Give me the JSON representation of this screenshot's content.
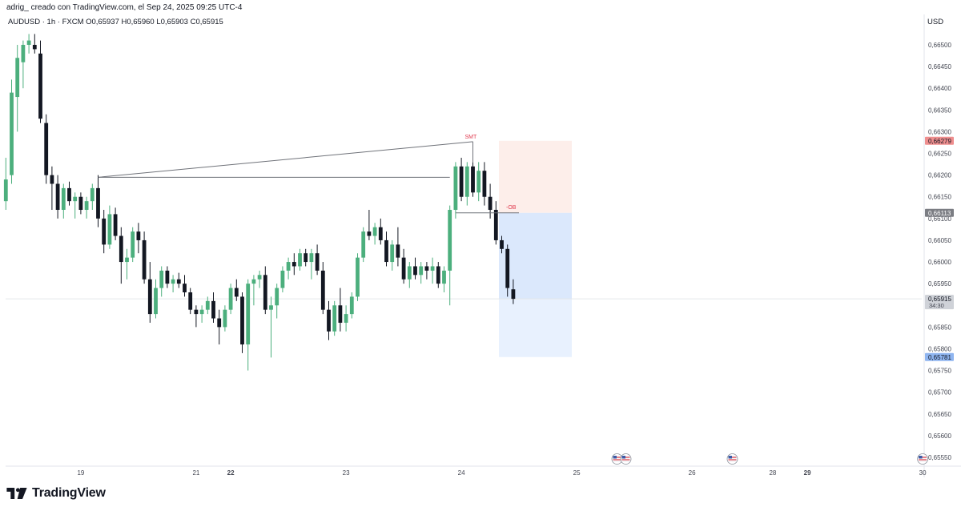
{
  "header": {
    "caption": "adrig_ creado con TradingView.com, el Sep 24, 2025 09:25 UTC-4",
    "symbol_line": "AUDUSD · 1h · FXCM  O0,65937  H0,65960  L0,65903  C0,65915",
    "currency": "USD"
  },
  "branding": {
    "logo_text": "TradingView"
  },
  "annotations": {
    "smt_label": "SMT",
    "ob_label": "-OB"
  },
  "colors": {
    "bull": "#4caf7d",
    "bear": "#131722",
    "ob_zone": "#dbe8fc",
    "target_zone": "#e8f1fe",
    "stop_zone": "#fdeeea",
    "price_tag": "#cfd2d8",
    "red_tag": "#ef8e8e",
    "gray_tag": "#7b7d83",
    "blue_tag": "#8fb5f0",
    "smt_color": "#e0394e"
  },
  "chart_data": {
    "type": "candlestick",
    "symbol": "AUDUSD",
    "timeframe": "1h",
    "source": "FXCM",
    "ohlc_last": {
      "open": 0.65937,
      "high": 0.6596,
      "low": 0.65903,
      "close": 0.65915
    },
    "ylim": [
      0.65525,
      0.66525
    ],
    "y_ticks": [
      "0,66500",
      "0,66450",
      "0,66400",
      "0,66350",
      "0,66300",
      "0,66250",
      "0,66200",
      "0,66150",
      "0,66100",
      "0,66050",
      "0,66000",
      "0,65950",
      "0,65900",
      "0,65850",
      "0,65800",
      "0,65750",
      "0,65700",
      "0,65650",
      "0,65600",
      "0,65550"
    ],
    "x_labels": [
      {
        "label": "19",
        "bold": false,
        "index": 13
      },
      {
        "label": "21",
        "bold": false,
        "index": 33
      },
      {
        "label": "22",
        "bold": true,
        "index": 39
      },
      {
        "label": "23",
        "bold": false,
        "index": 59
      },
      {
        "label": "24",
        "bold": false,
        "index": 79
      },
      {
        "label": "25",
        "bold": false,
        "index": 99
      },
      {
        "label": "26",
        "bold": false,
        "index": 119
      },
      {
        "label": "28",
        "bold": false,
        "index": 133
      },
      {
        "label": "29",
        "bold": true,
        "index": 139
      },
      {
        "label": "30",
        "bold": false,
        "index": 159
      }
    ],
    "price_tags": [
      {
        "value": 0.66279,
        "label": "0,66279",
        "style": "red"
      },
      {
        "value": 0.66113,
        "label": "0,66113",
        "style": "gray"
      },
      {
        "value": 0.65915,
        "label": "0,65915",
        "sub": "34:30",
        "style": "current"
      },
      {
        "value": 0.65781,
        "label": "0,65781",
        "style": "blue"
      }
    ],
    "zones": {
      "stop": {
        "from": 0.66113,
        "to": 0.66279
      },
      "ob": {
        "from": 0.65915,
        "to": 0.66113
      },
      "target": {
        "from": 0.65781,
        "to": 0.65915
      }
    },
    "lines": {
      "smt": {
        "from_index": 16,
        "from_value": 0.66195,
        "to_index": 81,
        "to_value": 0.66277
      },
      "level": {
        "from_index": 16,
        "to_index": 77,
        "value": 0.66195
      },
      "ob_level": {
        "from_index": 78,
        "to_index": 90,
        "value": 0.66113
      }
    },
    "candles": [
      [
        0.6614,
        0.6624,
        0.6612,
        0.6619
      ],
      [
        0.662,
        0.6642,
        0.6618,
        0.6639
      ],
      [
        0.6638,
        0.665,
        0.663,
        0.6647
      ],
      [
        0.6646,
        0.6651,
        0.664,
        0.665
      ],
      [
        0.665,
        0.66525,
        0.6648,
        0.6651
      ],
      [
        0.665,
        0.66525,
        0.6648,
        0.6649
      ],
      [
        0.6648,
        0.6651,
        0.6632,
        0.6633
      ],
      [
        0.6632,
        0.6634,
        0.6618,
        0.662
      ],
      [
        0.662,
        0.6622,
        0.6612,
        0.6618
      ],
      [
        0.6618,
        0.662,
        0.661,
        0.6612
      ],
      [
        0.6612,
        0.6618,
        0.661,
        0.6617
      ],
      [
        0.6617,
        0.66185,
        0.6613,
        0.6614
      ],
      [
        0.6614,
        0.6616,
        0.661,
        0.6615
      ],
      [
        0.6615,
        0.6616,
        0.6611,
        0.6612
      ],
      [
        0.6612,
        0.6615,
        0.661,
        0.6614
      ],
      [
        0.6614,
        0.6618,
        0.6612,
        0.6617
      ],
      [
        0.6617,
        0.662,
        0.6608,
        0.661
      ],
      [
        0.661,
        0.6612,
        0.6602,
        0.6604
      ],
      [
        0.6604,
        0.6613,
        0.6603,
        0.6611
      ],
      [
        0.6611,
        0.66125,
        0.6605,
        0.6606
      ],
      [
        0.6606,
        0.6608,
        0.6595,
        0.66
      ],
      [
        0.66,
        0.6603,
        0.6596,
        0.6601
      ],
      [
        0.6601,
        0.6608,
        0.66,
        0.6607
      ],
      [
        0.6607,
        0.6609,
        0.6602,
        0.6605
      ],
      [
        0.6605,
        0.6607,
        0.6595,
        0.6596
      ],
      [
        0.6596,
        0.66,
        0.6586,
        0.6588
      ],
      [
        0.6588,
        0.6596,
        0.6587,
        0.6594
      ],
      [
        0.6594,
        0.6599,
        0.6592,
        0.6598
      ],
      [
        0.6598,
        0.6599,
        0.6594,
        0.6595
      ],
      [
        0.6595,
        0.6597,
        0.6593,
        0.6596
      ],
      [
        0.6596,
        0.65975,
        0.6594,
        0.6595
      ],
      [
        0.6595,
        0.6597,
        0.6592,
        0.6593
      ],
      [
        0.6593,
        0.6594,
        0.6588,
        0.6589
      ],
      [
        0.6589,
        0.659,
        0.6585,
        0.6588
      ],
      [
        0.6588,
        0.659,
        0.6586,
        0.6589
      ],
      [
        0.6589,
        0.6592,
        0.6588,
        0.6591
      ],
      [
        0.6591,
        0.6593,
        0.6586,
        0.6587
      ],
      [
        0.6587,
        0.6589,
        0.6581,
        0.6585
      ],
      [
        0.6585,
        0.659,
        0.6584,
        0.6589
      ],
      [
        0.6589,
        0.6595,
        0.6588,
        0.6594
      ],
      [
        0.6594,
        0.6596,
        0.6591,
        0.6592
      ],
      [
        0.6592,
        0.6593,
        0.6579,
        0.6581
      ],
      [
        0.6581,
        0.6596,
        0.6575,
        0.6595
      ],
      [
        0.6595,
        0.6597,
        0.659,
        0.6596
      ],
      [
        0.6596,
        0.6598,
        0.6594,
        0.6597
      ],
      [
        0.6597,
        0.6599,
        0.6588,
        0.6589
      ],
      [
        0.6589,
        0.6592,
        0.6578,
        0.659
      ],
      [
        0.659,
        0.6595,
        0.6587,
        0.6594
      ],
      [
        0.6594,
        0.6599,
        0.6593,
        0.6598
      ],
      [
        0.6598,
        0.6601,
        0.6596,
        0.66
      ],
      [
        0.66,
        0.6602,
        0.6597,
        0.6599
      ],
      [
        0.6599,
        0.6603,
        0.6598,
        0.6602
      ],
      [
        0.6602,
        0.6603,
        0.6599,
        0.66
      ],
      [
        0.66,
        0.6603,
        0.6596,
        0.6602
      ],
      [
        0.6602,
        0.6604,
        0.6597,
        0.6598
      ],
      [
        0.6598,
        0.66,
        0.6588,
        0.6589
      ],
      [
        0.6589,
        0.6591,
        0.6582,
        0.6584
      ],
      [
        0.6584,
        0.6591,
        0.6583,
        0.659
      ],
      [
        0.659,
        0.6594,
        0.6584,
        0.6586
      ],
      [
        0.6586,
        0.659,
        0.6584,
        0.6588
      ],
      [
        0.6588,
        0.6593,
        0.6587,
        0.6592
      ],
      [
        0.6592,
        0.6602,
        0.6591,
        0.6601
      ],
      [
        0.6601,
        0.6608,
        0.66,
        0.6607
      ],
      [
        0.6607,
        0.6612,
        0.6605,
        0.6606
      ],
      [
        0.6606,
        0.6609,
        0.6604,
        0.6608
      ],
      [
        0.6608,
        0.661,
        0.6604,
        0.6605
      ],
      [
        0.6605,
        0.6607,
        0.6599,
        0.66
      ],
      [
        0.66,
        0.6605,
        0.6598,
        0.6604
      ],
      [
        0.6604,
        0.6608,
        0.6599,
        0.6601
      ],
      [
        0.6601,
        0.6603,
        0.6595,
        0.6596
      ],
      [
        0.6596,
        0.66,
        0.6594,
        0.6599
      ],
      [
        0.6599,
        0.6601,
        0.6596,
        0.6597
      ],
      [
        0.6597,
        0.66,
        0.6595,
        0.6599
      ],
      [
        0.6599,
        0.66,
        0.6596,
        0.6598
      ],
      [
        0.6598,
        0.6601,
        0.6595,
        0.6599
      ],
      [
        0.6599,
        0.66,
        0.6594,
        0.6595
      ],
      [
        0.6595,
        0.6599,
        0.6593,
        0.6598
      ],
      [
        0.6598,
        0.6613,
        0.659,
        0.6612
      ],
      [
        0.6612,
        0.6623,
        0.661,
        0.6622
      ],
      [
        0.6622,
        0.6624,
        0.6614,
        0.6615
      ],
      [
        0.6615,
        0.6623,
        0.6613,
        0.6622
      ],
      [
        0.6622,
        0.6626,
        0.6615,
        0.6616
      ],
      [
        0.6616,
        0.6623,
        0.6614,
        0.6621
      ],
      [
        0.6621,
        0.6623,
        0.6613,
        0.6615
      ],
      [
        0.6615,
        0.6618,
        0.661,
        0.6612
      ],
      [
        0.6612,
        0.6614,
        0.6604,
        0.6605
      ],
      [
        0.6605,
        0.6606,
        0.6602,
        0.6603
      ],
      [
        0.6603,
        0.6604,
        0.6592,
        0.6594
      ],
      [
        0.65937,
        0.6596,
        0.65903,
        0.65915
      ]
    ]
  },
  "event_markers": [
    {
      "index": 106,
      "count": 2
    },
    {
      "index": 126,
      "count": 1
    },
    {
      "index": 159,
      "count": 1
    }
  ]
}
